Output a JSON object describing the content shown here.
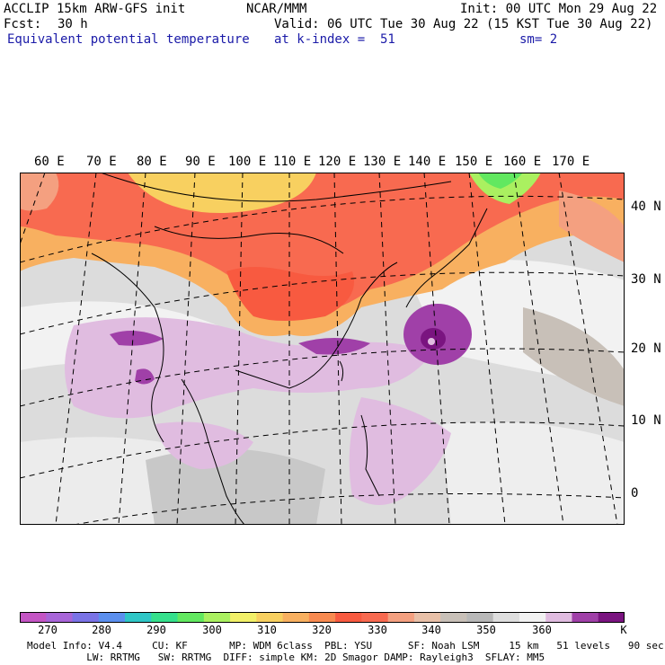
{
  "header": {
    "model": "ACCLIP 15km ARW-GFS init",
    "org": "NCAR/MMM",
    "init": "Init: 00 UTC Mon 29 Aug 22",
    "fcst_label": "Fcst:",
    "fcst_value": "30 h",
    "valid": "Valid: 06 UTC Tue 30 Aug 22 (15 KST Tue 30 Aug 22)",
    "field": "Equivalent potential temperature",
    "level": "at k-index =  51",
    "smoothing": "sm= 2"
  },
  "map": {
    "lon_labels": [
      "60 E",
      "70 E",
      "80 E",
      "90 E",
      "100 E",
      "110 E",
      "120 E",
      "130 E",
      "140 E",
      "150 E",
      "160 E",
      "170 E"
    ],
    "lat_labels": [
      "40 N",
      "30 N",
      "20 N",
      "10 N",
      "0"
    ]
  },
  "colorbar": {
    "unit": "K",
    "tick_labels": [
      "270",
      "280",
      "290",
      "300",
      "310",
      "320",
      "330",
      "340",
      "350",
      "360"
    ],
    "colors": [
      "#c455c4",
      "#a865d8",
      "#7a73e6",
      "#5b8fee",
      "#2fc6c6",
      "#35e08c",
      "#62e860",
      "#aaf060",
      "#f2f068",
      "#f8d060",
      "#f8b060",
      "#f88a50",
      "#f85a40",
      "#f86a50",
      "#f4a080",
      "#e8c0a8",
      "#c8c0b8",
      "#b8b8b8",
      "#dedede",
      "#f2f2f2",
      "#e0bce0",
      "#a040a8",
      "#7a1480"
    ]
  },
  "footer": {
    "line1": "Model Info: V4.4     CU: KF       MP: WDM 6class  PBL: YSU      SF: Noah LSM     15 km   51 levels   90 sec",
    "line2": "          LW: RRTMG   SW: RRTMG  DIFF: simple KM: 2D Smagor DAMP: Rayleigh3  SFLAY: MM5"
  }
}
